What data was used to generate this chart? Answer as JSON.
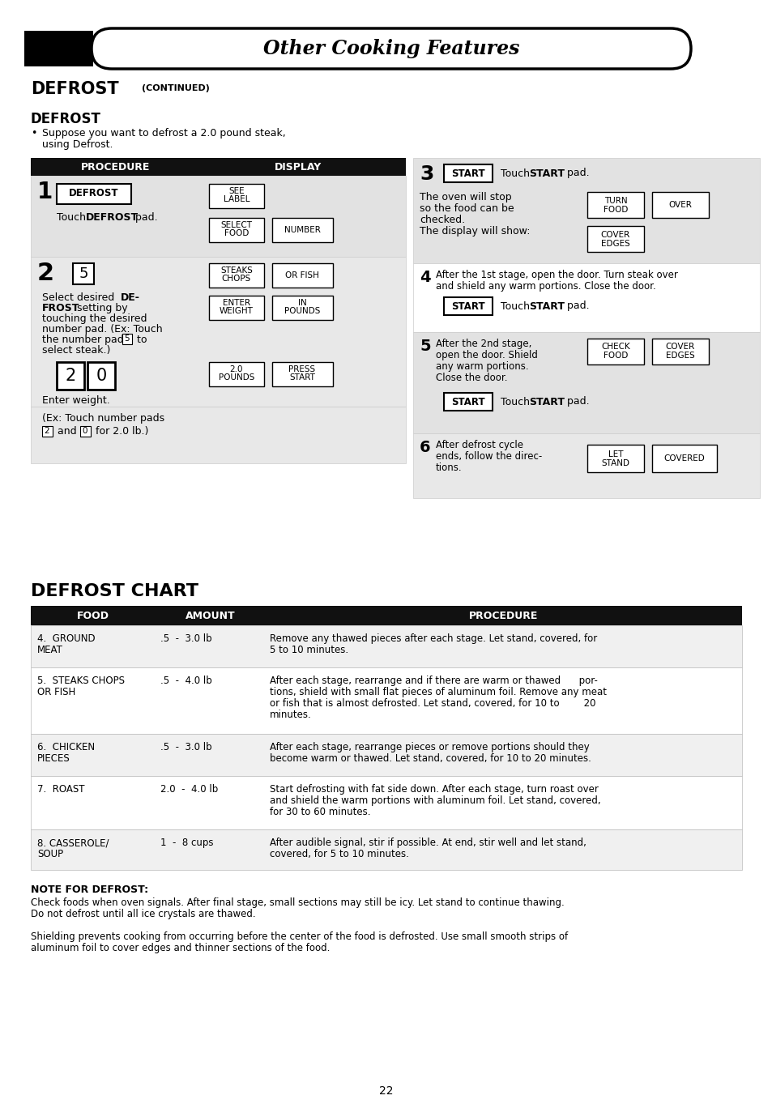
{
  "title_text": "Other Cooking Features",
  "page_number": "22",
  "chart_rows": [
    {
      "food": "4.  GROUND\n    MEAT",
      "amount": ".5  -  3.0 lb",
      "procedure": "Remove any thawed pieces after each stage. Let stand, covered, for\n5 to 10 minutes."
    },
    {
      "food": "5.  STEAKS CHOPS\n    OR FISH",
      "amount": ".5  -  4.0 lb",
      "procedure": "After each stage, rearrange and if there are warm or thawed      por-\ntions, shield with small flat pieces of aluminum foil. Remove any meat\nor fish that is almost defrosted. Let stand, covered, for 10 to        20\nminutes."
    },
    {
      "food": "6.  CHICKEN\n    PIECES",
      "amount": ".5  -  3.0 lb",
      "procedure": "After each stage, rearrange pieces or remove portions should they\nbecome warm or thawed. Let stand, covered, for 10 to 20 minutes."
    },
    {
      "food": "7.  ROAST",
      "amount": "2.0  -  4.0 lb",
      "procedure": "Start defrosting with fat side down. After each stage, turn roast over\nand shield the warm portions with aluminum foil. Let stand, covered,\nfor 30 to 60 minutes."
    },
    {
      "food": "8. CASSEROLE/\n   SOUP",
      "amount": "1  -  8 cups",
      "procedure": "After audible signal, stir if possible. At end, stir well and let stand,\ncovered, for 5 to 10 minutes."
    }
  ]
}
